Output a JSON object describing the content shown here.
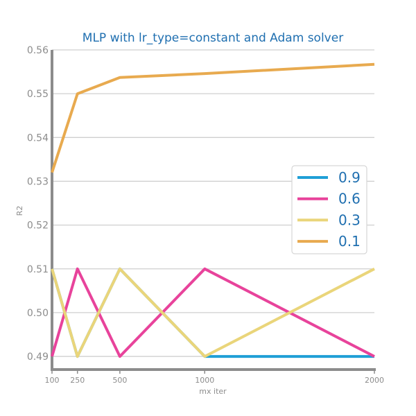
{
  "chart_data": {
    "type": "line",
    "title": "MLP with lr_type=constant and Adam solver",
    "xlabel": "mx iter",
    "ylabel": "R2",
    "x": [
      100,
      250,
      500,
      1000,
      2000
    ],
    "x_ticks": [
      "100",
      "250",
      "500",
      "1000",
      "2000"
    ],
    "xlim": [
      100,
      2000
    ],
    "ylim": [
      0.487,
      0.56
    ],
    "y_ticks": [
      "0.49",
      "0.50",
      "0.51",
      "0.52",
      "0.53",
      "0.54",
      "0.55",
      "0.56"
    ],
    "y_tick_values": [
      0.49,
      0.5,
      0.51,
      0.52,
      0.53,
      0.54,
      0.55,
      0.56
    ],
    "grid": "horizontal",
    "legend_position": "right",
    "series": [
      {
        "name": "0.9",
        "color": "#1f9fd6",
        "values": [
          0.51,
          0.49,
          0.51,
          0.49,
          0.49
        ]
      },
      {
        "name": "0.6",
        "color": "#e8439b",
        "values": [
          0.49,
          0.51,
          0.49,
          0.51,
          0.49
        ]
      },
      {
        "name": "0.3",
        "color": "#ead57a",
        "values": [
          0.51,
          0.49,
          0.51,
          0.49,
          0.51
        ]
      },
      {
        "name": "0.1",
        "color": "#e8aa4f",
        "values": [
          0.532,
          0.55,
          0.5537,
          0.5546,
          0.5567
        ]
      }
    ],
    "title_color": "#1f6fb0",
    "legend_text_color": "#1f6fb0",
    "axis_color": "#8c8c8c",
    "grid_color": "#cfcfcf"
  }
}
